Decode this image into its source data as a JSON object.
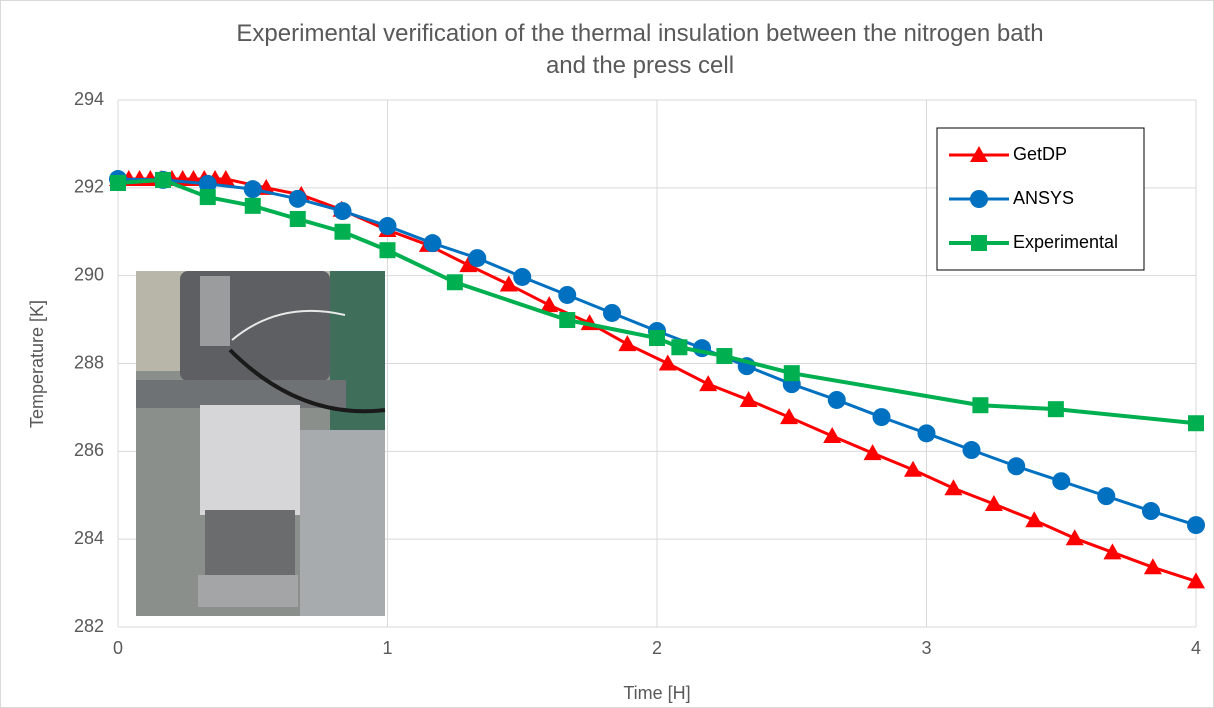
{
  "chart_data": {
    "type": "line",
    "title": "Experimental verification of the thermal insulation between the nitrogen bath and the press cell",
    "x_label": "Time [H]",
    "y_label": "Temperature [K]",
    "xlim": [
      0,
      4
    ],
    "xticks": [
      0,
      1,
      2,
      3,
      4
    ],
    "ylim": [
      282,
      294
    ],
    "yticks": [
      282,
      284,
      286,
      288,
      290,
      292,
      294
    ],
    "grid": true,
    "legend": "upper right",
    "series": [
      {
        "name": "GetDP",
        "color": "#ff0000",
        "marker": "triangle",
        "x": [
          0,
          0.04,
          0.08,
          0.12,
          0.16,
          0.2,
          0.24,
          0.28,
          0.32,
          0.36,
          0.4,
          0.55,
          0.68,
          0.83,
          1.0,
          1.15,
          1.3,
          1.45,
          1.6,
          1.75,
          1.89,
          2.04,
          2.19,
          2.34,
          2.49,
          2.65,
          2.8,
          2.95,
          3.1,
          3.25,
          3.4,
          3.55,
          3.69,
          3.84,
          4.0
        ],
        "values": [
          292.2,
          292.2,
          292.2,
          292.2,
          292.2,
          292.2,
          292.2,
          292.2,
          292.2,
          292.2,
          292.2,
          292.0,
          291.84,
          291.5,
          291.04,
          290.7,
          290.24,
          289.8,
          289.33,
          288.92,
          288.44,
          288.0,
          287.53,
          287.17,
          286.78,
          286.35,
          285.96,
          285.58,
          285.16,
          284.8,
          284.43,
          284.02,
          283.7,
          283.36,
          283.04
        ]
      },
      {
        "name": "ANSYS",
        "color": "#0070c0",
        "marker": "circle",
        "x": [
          0,
          0.167,
          0.333,
          0.5,
          0.667,
          0.833,
          1.0,
          1.167,
          1.333,
          1.5,
          1.667,
          1.833,
          2.0,
          2.167,
          2.333,
          2.5,
          2.667,
          2.833,
          3.0,
          3.167,
          3.333,
          3.5,
          3.667,
          3.833,
          4.0
        ],
        "values": [
          292.2,
          292.18,
          292.09,
          291.97,
          291.75,
          291.47,
          291.13,
          290.74,
          290.4,
          289.97,
          289.56,
          289.15,
          288.74,
          288.35,
          287.94,
          287.53,
          287.17,
          286.78,
          286.41,
          286.03,
          285.66,
          285.32,
          284.98,
          284.64,
          284.32
        ]
      },
      {
        "name": "Experimental",
        "color": "#00b050",
        "marker": "square",
        "x": [
          0,
          0.167,
          0.333,
          0.5,
          0.667,
          0.833,
          1.0,
          1.25,
          1.667,
          2.0,
          2.083,
          2.25,
          2.5,
          3.2,
          3.48,
          4.0
        ],
        "values": [
          292.11,
          292.18,
          291.79,
          291.59,
          291.29,
          291.0,
          290.58,
          289.85,
          288.99,
          288.58,
          288.37,
          288.17,
          287.78,
          287.05,
          286.96,
          286.64
        ]
      }
    ]
  }
}
